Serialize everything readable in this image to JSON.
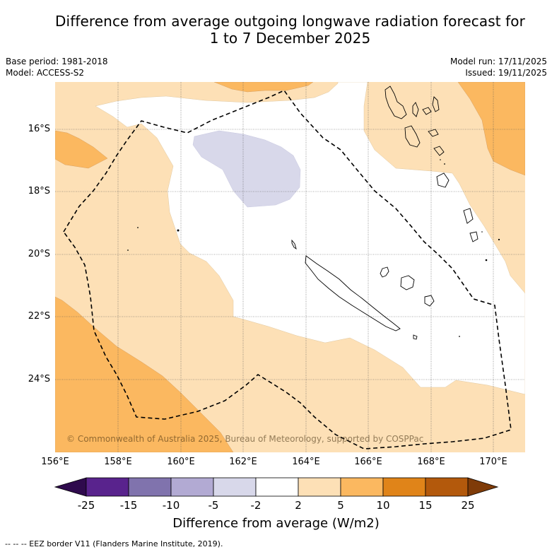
{
  "title": {
    "line1": "Difference from average outgoing longwave radiation forecast for",
    "line2": "1 to 7 December 2025"
  },
  "meta_left": {
    "base_period": "Base period: 1981-2018",
    "model": "Model: ACCESS-S2"
  },
  "meta_right": {
    "model_run": "Model run: 17/11/2025",
    "issued": "Issued: 19/11/2025"
  },
  "map": {
    "lon_range": [
      156,
      171
    ],
    "lat_range": [
      -26.15,
      -14.35
    ],
    "lat_ticks": [
      "16°S",
      "18°S",
      "20°S",
      "22°S",
      "24°S"
    ],
    "lon_ticks": [
      "156°E",
      "158°E",
      "160°E",
      "162°E",
      "164°E",
      "166°E",
      "168°E",
      "170°E"
    ],
    "copyright": "© Commonwealth of Australia 2025, Bureau of Meteorology, supported by COSPPac",
    "legend_eez": "--  --  -- EEZ border V11 (Flanders Marine Institute, 2019).",
    "colors": {
      "c_neg5_neg2": "#d8d8ea",
      "c_neg2_2": "#ffffff",
      "c_2_5": "#fde0b6",
      "c_5_10": "#fbb860"
    }
  },
  "colorbar": {
    "title": "Difference from average (W/m2)",
    "tick_labels": [
      "-25",
      "-15",
      "-10",
      "-5",
      "-2",
      "2",
      "5",
      "10",
      "15",
      "25"
    ],
    "bins": [
      {
        "label": "<-25",
        "color": "#2f0a4d"
      },
      {
        "label": "-25 to -15",
        "color": "#59238d"
      },
      {
        "label": "-15 to -10",
        "color": "#8073ad"
      },
      {
        "label": "-10 to -5",
        "color": "#b2aad3"
      },
      {
        "label": "-5 to -2",
        "color": "#d8d8ea"
      },
      {
        "label": "-2 to 2",
        "color": "#ffffff"
      },
      {
        "label": "2 to 5",
        "color": "#fde0b6"
      },
      {
        "label": "5 to 10",
        "color": "#fbb860"
      },
      {
        "label": "10 to 15",
        "color": "#e08419"
      },
      {
        "label": "15 to 25",
        "color": "#b3590c"
      },
      {
        "label": ">25",
        "color": "#7f3b08"
      }
    ]
  }
}
